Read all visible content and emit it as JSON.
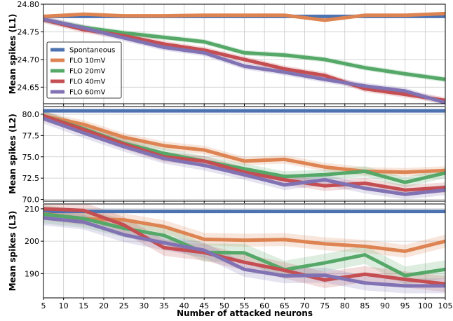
{
  "colors": {
    "Spontaneous": "#4c72b0",
    "FLO 10mV": "#dd8452",
    "FLO 20mV": "#55a868",
    "FLO 40mV": "#c44e52",
    "FLO 60mV": "#8172b3"
  },
  "legend": [
    "Spontaneous",
    "FLO 10mV",
    "FLO 20mV",
    "FLO 40mV",
    "FLO 60mV"
  ],
  "chart_data": [
    {
      "type": "line",
      "ylabel": "Mean spikes (L1)",
      "xlabel": "",
      "xlim": [
        5,
        105
      ],
      "ylim": [
        24.62,
        24.8
      ],
      "yticks": [
        "24.65",
        "24.70",
        "24.75",
        "24.80"
      ],
      "ytick_values": [
        24.65,
        24.7,
        24.75,
        24.8
      ],
      "grid": true,
      "legend_position": "left",
      "x": [
        5,
        15,
        25,
        35,
        45,
        55,
        65,
        75,
        85,
        95,
        105
      ],
      "series": [
        {
          "name": "Spontaneous",
          "values": [
            24.778,
            24.778,
            24.778,
            24.778,
            24.778,
            24.778,
            24.778,
            24.778,
            24.778,
            24.778,
            24.778
          ],
          "band": 0.001
        },
        {
          "name": "FLO 10mV",
          "values": [
            24.778,
            24.782,
            24.779,
            24.779,
            24.78,
            24.78,
            24.78,
            24.771,
            24.78,
            24.78,
            24.783
          ],
          "band": 0.003
        },
        {
          "name": "FLO 20mV",
          "values": [
            24.772,
            24.758,
            24.748,
            24.74,
            24.732,
            24.712,
            24.708,
            24.7,
            24.685,
            24.674,
            24.664
          ],
          "band": 0.005
        },
        {
          "name": "FLO 40mV",
          "values": [
            24.772,
            24.754,
            24.743,
            24.728,
            24.717,
            24.7,
            24.683,
            24.671,
            24.647,
            24.637,
            24.626
          ],
          "band": 0.006
        },
        {
          "name": "FLO 60mV",
          "values": [
            24.773,
            24.757,
            24.739,
            24.722,
            24.712,
            24.688,
            24.677,
            24.664,
            24.652,
            24.643,
            24.622
          ],
          "band": 0.006
        }
      ]
    },
    {
      "type": "line",
      "ylabel": "Mean spikes (L2)",
      "xlabel": "",
      "xlim": [
        5,
        105
      ],
      "ylim": [
        69.8,
        80.9
      ],
      "yticks": [
        "70.0",
        "72.5",
        "75.0",
        "77.5",
        "80.0"
      ],
      "ytick_values": [
        70.0,
        72.5,
        75.0,
        77.5,
        80.0
      ],
      "grid": true,
      "x": [
        5,
        15,
        25,
        35,
        45,
        55,
        65,
        75,
        85,
        95,
        105
      ],
      "series": [
        {
          "name": "Spontaneous",
          "values": [
            80.4,
            80.4,
            80.4,
            80.4,
            80.4,
            80.4,
            80.4,
            80.4,
            80.4,
            80.4,
            80.4
          ],
          "band": 0.05
        },
        {
          "name": "FLO 10mV",
          "values": [
            79.8,
            78.8,
            77.3,
            76.3,
            75.8,
            74.5,
            74.7,
            73.8,
            73.3,
            73.2,
            73.4
          ],
          "band": 0.5
        },
        {
          "name": "FLO 20mV",
          "values": [
            79.8,
            78.3,
            76.6,
            75.4,
            74.5,
            73.6,
            72.7,
            72.9,
            73.3,
            72.0,
            73.1
          ],
          "band": 0.6
        },
        {
          "name": "FLO 40mV",
          "values": [
            79.8,
            78.2,
            76.5,
            75.0,
            74.5,
            73.2,
            72.3,
            71.6,
            71.9,
            71.1,
            71.4
          ],
          "band": 0.6
        },
        {
          "name": "FLO 60mV",
          "values": [
            79.5,
            77.8,
            76.2,
            74.8,
            74.0,
            72.9,
            71.7,
            72.3,
            71.3,
            70.6,
            71.1
          ],
          "band": 0.6
        }
      ]
    },
    {
      "type": "line",
      "ylabel": "Mean spikes (L3)",
      "xlabel": "Number of attacked neurons",
      "xlim": [
        5,
        105
      ],
      "ylim": [
        182.5,
        211.5
      ],
      "yticks": [
        "190",
        "200",
        "210"
      ],
      "ytick_values": [
        190,
        200,
        210
      ],
      "grid": true,
      "x": [
        5,
        15,
        25,
        35,
        45,
        55,
        65,
        75,
        85,
        95,
        105
      ],
      "xticks": [
        "5",
        "10",
        "15",
        "20",
        "25",
        "30",
        "35",
        "40",
        "45",
        "50",
        "55",
        "60",
        "65",
        "70",
        "75",
        "80",
        "85",
        "90",
        "95",
        "100",
        "105"
      ],
      "xtick_values": [
        5,
        10,
        15,
        20,
        25,
        30,
        35,
        40,
        45,
        50,
        55,
        60,
        65,
        70,
        75,
        80,
        85,
        90,
        95,
        100,
        105
      ],
      "series": [
        {
          "name": "Spontaneous",
          "values": [
            209.2,
            209.2,
            209.2,
            209.2,
            209.2,
            209.2,
            209.2,
            209.2,
            209.2,
            209.2,
            209.2
          ],
          "band": 0.1
        },
        {
          "name": "FLO 10mV",
          "values": [
            208.5,
            206.9,
            206.6,
            204.5,
            200.6,
            200.3,
            200.5,
            199.2,
            198.4,
            196.9,
            200.0
          ],
          "band": 2.0
        },
        {
          "name": "FLO 20mV",
          "values": [
            208.3,
            207.0,
            204.0,
            201.8,
            196.5,
            196.4,
            191.2,
            193.3,
            195.8,
            189.4,
            191.3
          ],
          "band": 2.8
        },
        {
          "name": "FLO 40mV",
          "values": [
            210.0,
            209.5,
            205.0,
            198.0,
            196.5,
            193.5,
            191.0,
            188.0,
            189.8,
            188.2,
            186.8
          ],
          "band": 2.5
        },
        {
          "name": "FLO 60mV",
          "values": [
            207.2,
            205.9,
            202.0,
            199.5,
            197.2,
            191.3,
            189.3,
            189.5,
            187.1,
            186.2,
            186.2
          ],
          "band": 2.3
        }
      ]
    }
  ]
}
